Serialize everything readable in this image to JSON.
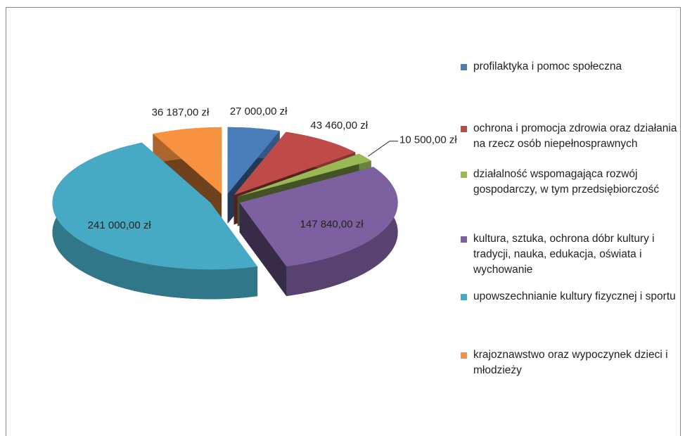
{
  "chart_data": {
    "type": "pie3d",
    "categories": [
      "profilaktyka i pomoc społeczna",
      "ochrona i promocja zdrowia oraz działania na rzecz osób niepełnosprawnych",
      "działalność wspomagająca rozwój gospodarczy, w tym przedsiębiorczość",
      "kultura, sztuka, ochrona dóbr kultury i tradycji, nauka, edukacja, oświata i wychowanie",
      "upowszechnianie kultury fizycznej i sportu",
      "krajoznawstwo oraz wypoczynek dzieci i młodzieży"
    ],
    "values": [
      27000,
      43460,
      10500,
      147840,
      241000,
      36187
    ],
    "value_labels": [
      "27 000,00 zł",
      "43 460,00 zł",
      "10 500,00 zł",
      "147 840,00 zł",
      "241 000,00 zł",
      "36 187,00 zł"
    ],
    "colors": [
      "#4a7ebb",
      "#be4b48",
      "#98b954",
      "#7d60a0",
      "#46aac5",
      "#f69240"
    ],
    "legend": "right"
  }
}
